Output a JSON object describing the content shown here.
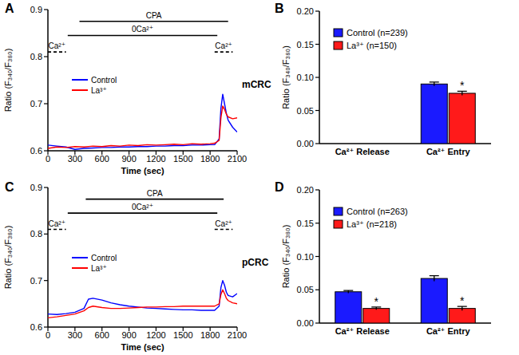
{
  "chart_data": [
    {
      "type": "line",
      "title": "A",
      "subtitle": "mCRC",
      "x_label": "Time (sec)",
      "y_label": "Ratio (F₃₄₀/F₃₈₀)",
      "x": [
        0,
        100,
        200,
        300,
        400,
        500,
        600,
        700,
        800,
        900,
        1000,
        1100,
        1200,
        1300,
        1400,
        1500,
        1600,
        1700,
        1800,
        1850,
        1900,
        1920,
        1940,
        1960,
        1980,
        2000,
        2050,
        2100
      ],
      "xlim": [
        0,
        2100
      ],
      "xticks": [
        0,
        300,
        600,
        900,
        1200,
        1500,
        1800,
        2100
      ],
      "ylim": [
        0.6,
        0.9
      ],
      "yticks": [
        0.6,
        0.7,
        0.8,
        0.9
      ],
      "legend": "left",
      "series": [
        {
          "name": "Control",
          "color": "#0000ff",
          "values": [
            0.612,
            0.61,
            0.608,
            0.603,
            0.605,
            0.606,
            0.607,
            0.607,
            0.608,
            0.608,
            0.609,
            0.609,
            0.61,
            0.61,
            0.611,
            0.611,
            0.612,
            0.612,
            0.613,
            0.613,
            0.625,
            0.69,
            0.72,
            0.7,
            0.68,
            0.665,
            0.65,
            0.64
          ]
        },
        {
          "name": "La³⁺",
          "color": "#ff0000",
          "values": [
            0.605,
            0.608,
            0.607,
            0.609,
            0.608,
            0.61,
            0.609,
            0.611,
            0.61,
            0.612,
            0.611,
            0.613,
            0.612,
            0.613,
            0.614,
            0.613,
            0.615,
            0.614,
            0.615,
            0.616,
            0.622,
            0.67,
            0.695,
            0.688,
            0.678,
            0.672,
            0.668,
            0.67
          ]
        }
      ],
      "annotations": [
        {
          "text": "CPA",
          "x": [
            350,
            2000
          ],
          "y": 0.875
        },
        {
          "text": "0Ca²⁺",
          "x": [
            220,
            1880
          ],
          "y": 0.845
        },
        {
          "text": "Ca²⁺",
          "x": [
            0,
            200
          ],
          "y": 0.81,
          "line_style": "dashed"
        },
        {
          "text": "Ca²⁺",
          "x": [
            1850,
            2050
          ],
          "y": 0.81,
          "line_style": "dashed"
        }
      ]
    },
    {
      "type": "bar",
      "title": "B",
      "y_label": "Ratio (F₃₄₀/F₃₈₀)",
      "categories": [
        "Ca²⁺ Release",
        "Ca²⁺ Entry"
      ],
      "ylim": [
        0,
        0.2
      ],
      "yticks": [
        {
          "value": 0,
          "label": "0.00"
        },
        {
          "value": 0.05,
          "label": "0.05"
        },
        {
          "value": 0.1,
          "label": "0.10"
        },
        {
          "value": 0.15,
          "label": "0.15"
        },
        {
          "value": 0.2,
          "label": "0.20"
        }
      ],
      "legend": "upper left",
      "series": [
        {
          "name": "Control (n=239)",
          "color": "#1a1aff",
          "values": [
            null,
            0.09
          ],
          "errors": [
            null,
            0.003
          ]
        },
        {
          "name": "La³⁺ (n=150)",
          "color": "#ff1a1a",
          "values": [
            null,
            0.076
          ],
          "errors": [
            null,
            0.003
          ]
        }
      ],
      "annotations": [
        {
          "text": "*",
          "category": "Ca²⁺ Entry",
          "series": "La³⁺ (n=150)"
        }
      ]
    },
    {
      "type": "line",
      "title": "C",
      "subtitle": "pCRC",
      "x_label": "Time (sec)",
      "y_label": "Ratio (F₃₄₀/F₃₈₀)",
      "x": [
        0,
        100,
        200,
        300,
        400,
        450,
        500,
        600,
        700,
        800,
        900,
        1000,
        1100,
        1200,
        1300,
        1400,
        1500,
        1600,
        1700,
        1800,
        1850,
        1900,
        1920,
        1940,
        1960,
        1980,
        2000,
        2050,
        2100
      ],
      "xlim": [
        0,
        2100
      ],
      "xticks": [
        0,
        300,
        600,
        900,
        1200,
        1500,
        1800,
        2100
      ],
      "ylim": [
        0.6,
        0.9
      ],
      "yticks": [
        0.6,
        0.7,
        0.8,
        0.9
      ],
      "legend": "left",
      "series": [
        {
          "name": "Control",
          "color": "#0000ff",
          "values": [
            0.628,
            0.627,
            0.629,
            0.632,
            0.64,
            0.66,
            0.662,
            0.658,
            0.652,
            0.648,
            0.645,
            0.643,
            0.641,
            0.64,
            0.639,
            0.638,
            0.637,
            0.637,
            0.636,
            0.636,
            0.636,
            0.645,
            0.685,
            0.7,
            0.69,
            0.675,
            0.668,
            0.665,
            0.672
          ]
        },
        {
          "name": "La³⁺",
          "color": "#ff0000",
          "values": [
            0.62,
            0.622,
            0.625,
            0.628,
            0.635,
            0.642,
            0.645,
            0.642,
            0.64,
            0.64,
            0.641,
            0.642,
            0.643,
            0.643,
            0.644,
            0.644,
            0.645,
            0.645,
            0.645,
            0.645,
            0.645,
            0.65,
            0.67,
            0.68,
            0.672,
            0.662,
            0.657,
            0.652,
            0.65
          ]
        }
      ],
      "annotations": [
        {
          "text": "CPA",
          "x": [
            420,
            1950
          ],
          "y": 0.875
        },
        {
          "text": "0Ca²⁺",
          "x": [
            220,
            1880
          ],
          "y": 0.845
        },
        {
          "text": "Ca²⁺",
          "x": [
            0,
            200
          ],
          "y": 0.81,
          "line_style": "dashed"
        },
        {
          "text": "Ca²⁺",
          "x": [
            1850,
            2050
          ],
          "y": 0.81,
          "line_style": "dashed"
        }
      ]
    },
    {
      "type": "bar",
      "title": "D",
      "y_label": "Ratio (F₃₄₀/F₃₈₀)",
      "categories": [
        "Ca²⁺ Release",
        "Ca²⁺ Entry"
      ],
      "ylim": [
        0,
        0.2
      ],
      "yticks": [
        {
          "value": 0,
          "label": "0.00"
        },
        {
          "value": 0.05,
          "label": "0.05"
        },
        {
          "value": 0.1,
          "label": "0.10"
        },
        {
          "value": 0.15,
          "label": "0.15"
        },
        {
          "value": 0.2,
          "label": "0.20"
        }
      ],
      "legend": "upper left",
      "series": [
        {
          "name": "Control (n=263)",
          "color": "#1a1aff",
          "values": [
            0.047,
            0.067
          ],
          "errors": [
            0.002,
            0.004
          ]
        },
        {
          "name": "La³⁺ (n=218)",
          "color": "#ff1a1a",
          "values": [
            0.022,
            0.022
          ],
          "errors": [
            0.002,
            0.003
          ]
        }
      ],
      "annotations": [
        {
          "text": "*",
          "category": "Ca²⁺ Release",
          "series": "La³⁺ (n=218)"
        },
        {
          "text": "*",
          "category": "Ca²⁺ Entry",
          "series": "La³⁺ (n=218)"
        }
      ]
    }
  ]
}
